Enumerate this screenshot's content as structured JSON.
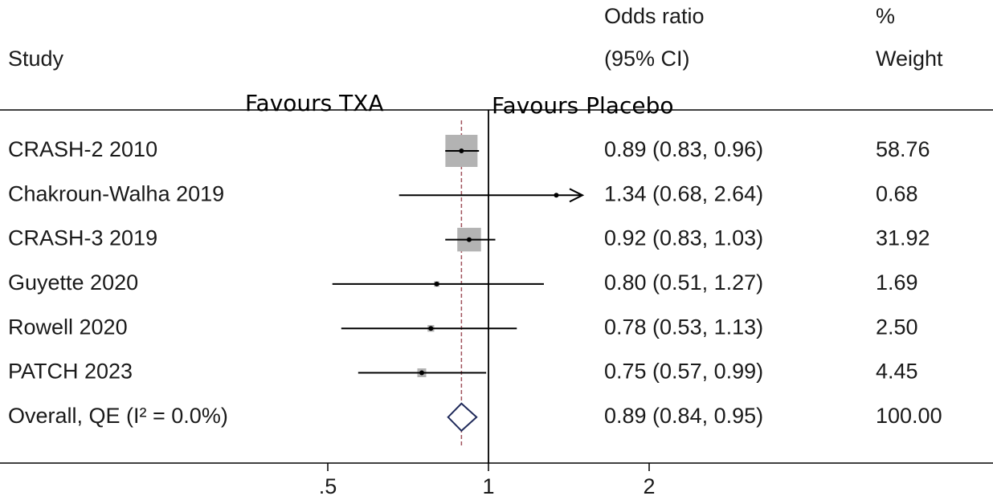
{
  "chart_data": {
    "type": "forest",
    "headers": {
      "study": "Study",
      "effect": [
        "Odds ratio",
        "(95% CI)"
      ],
      "weight": [
        "%",
        "Weight"
      ]
    },
    "annotations": [
      "Favours TXA",
      "Favours Placebo"
    ],
    "categories": [
      "CRASH-2 2010",
      "Chakroun-Walha 2019",
      "CRASH-3 2019",
      "Guyette 2020",
      "Rowell 2020",
      "PATCH 2023"
    ],
    "values": [
      0.89,
      1.34,
      0.92,
      0.8,
      0.78,
      0.75
    ],
    "lower": [
      0.83,
      0.68,
      0.83,
      0.51,
      0.53,
      0.57
    ],
    "upper": [
      0.96,
      2.64,
      1.03,
      1.27,
      1.13,
      0.99
    ],
    "value_labels": [
      "0.89 (0.83, 0.96)",
      "1.34 (0.68, 2.64)",
      "0.92 (0.83, 1.03)",
      "0.80 (0.51, 1.27)",
      "0.78 (0.53, 1.13)",
      "0.75 (0.57, 0.99)"
    ],
    "weights": [
      58.76,
      0.68,
      31.92,
      1.69,
      2.5,
      4.45
    ],
    "weight_labels": [
      "58.76",
      "0.68",
      "31.92",
      "1.69",
      "2.50",
      "4.45"
    ],
    "overall": {
      "label": "Overall, QE (I² = 0.0%)",
      "value": 0.89,
      "lower": 0.84,
      "upper": 0.95,
      "value_label": "0.89 (0.84, 0.95)",
      "weight": 100,
      "weight_label": "100.00"
    },
    "xlim": [
      0.5,
      1.5
    ],
    "xticks": [
      {
        "value": 0.5,
        "label": ".5"
      },
      1,
      2
    ],
    "log_scale": true,
    "ref_line": 1,
    "box_color": "#b3b3b3",
    "line_color": "#000000",
    "overall_line_color": "#a0525a",
    "diamond_color": "#1f2a5a"
  }
}
